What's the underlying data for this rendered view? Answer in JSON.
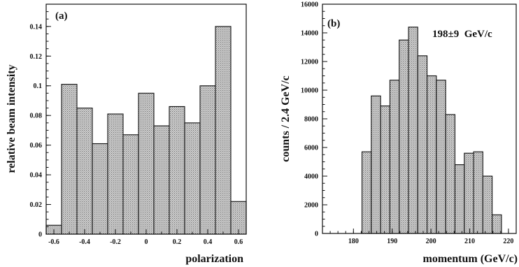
{
  "chart_data": [
    {
      "type": "bar",
      "panel_label": "(a)",
      "xlabel": "polarization",
      "ylabel": "relative beam intensity",
      "xlim": [
        -0.65,
        0.65
      ],
      "ylim": [
        0,
        0.155
      ],
      "x_ticks": [
        "-0.6",
        "-0.4",
        "-0.2",
        "0",
        "0.2",
        "0.4",
        "0.6"
      ],
      "y_ticks": [
        "0",
        "0.02",
        "0.04",
        "0.06",
        "0.08",
        "0.1",
        "0.12",
        "0.14"
      ],
      "bin_edges": [
        -0.65,
        -0.55,
        -0.45,
        -0.35,
        -0.25,
        -0.15,
        -0.05,
        0.05,
        0.15,
        0.25,
        0.35,
        0.45,
        0.55,
        0.65
      ],
      "values": [
        0.006,
        0.101,
        0.085,
        0.061,
        0.081,
        0.067,
        0.095,
        0.073,
        0.086,
        0.075,
        0.1,
        0.14,
        0.022
      ]
    },
    {
      "type": "bar",
      "panel_label": "(b)",
      "annotation": "198±9  GeV/c",
      "xlabel": "momentum (GeV/c)",
      "ylabel": "counts / 2.4 GeV/c",
      "xlim": [
        172,
        222
      ],
      "ylim": [
        0,
        16000
      ],
      "x_ticks": [
        "180",
        "190",
        "200",
        "210",
        "220"
      ],
      "y_ticks": [
        "0",
        "2000",
        "4000",
        "6000",
        "8000",
        "10000",
        "12000",
        "14000",
        "16000"
      ],
      "bin_edges": [
        182.2,
        184.6,
        187.0,
        189.4,
        191.8,
        194.2,
        196.6,
        199.0,
        201.4,
        203.8,
        206.2,
        208.6,
        211.0,
        213.4,
        215.8,
        218.2
      ],
      "values": [
        5700,
        9600,
        8900,
        10700,
        13500,
        14400,
        12400,
        11000,
        10700,
        8300,
        4800,
        5600,
        5700,
        4000,
        1300
      ]
    }
  ]
}
